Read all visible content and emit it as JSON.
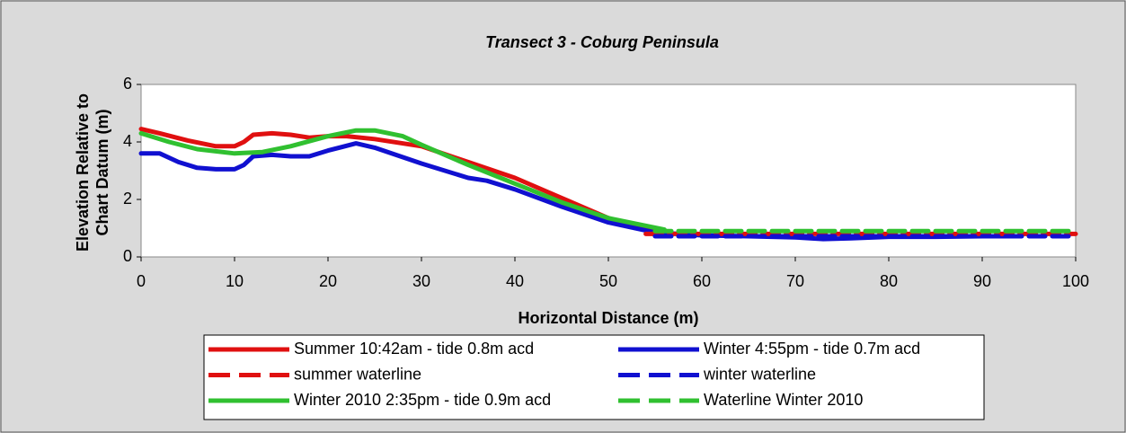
{
  "chart_data": {
    "type": "line",
    "title": "Transect 3 - Coburg Peninsula",
    "xlabel": "Horizontal Distance (m)",
    "ylabel": "Elevation Relative to Chart Datum (m)",
    "xlim": [
      0,
      100
    ],
    "xticks": [
      0,
      10,
      20,
      30,
      40,
      50,
      60,
      70,
      80,
      90,
      100
    ],
    "ylim": [
      0,
      6
    ],
    "yticks": [
      0,
      2,
      4,
      6
    ],
    "legend": "bottom",
    "series": [
      {
        "name": "Summer 10:42am - tide 0.8m acd",
        "color": "#e01010",
        "dash": false,
        "x": [
          0,
          2,
          5,
          8,
          10,
          11,
          12,
          14,
          16,
          18,
          20,
          22,
          25,
          30,
          35,
          40,
          45,
          50,
          55
        ],
        "values": [
          4.45,
          4.3,
          4.05,
          3.85,
          3.85,
          4.0,
          4.25,
          4.3,
          4.25,
          4.15,
          4.2,
          4.2,
          4.1,
          3.85,
          3.3,
          2.75,
          2.05,
          1.35,
          0.85
        ]
      },
      {
        "name": "Winter 4:55pm - tide 0.7m acd",
        "color": "#1010d0",
        "dash": false,
        "x": [
          0,
          2,
          4,
          6,
          8,
          10,
          11,
          12,
          14,
          16,
          18,
          20,
          23,
          25,
          30,
          35,
          37,
          40,
          45,
          50,
          55,
          60,
          65,
          70,
          73,
          76,
          80,
          85,
          90,
          94
        ],
        "values": [
          3.6,
          3.6,
          3.3,
          3.1,
          3.05,
          3.05,
          3.2,
          3.5,
          3.55,
          3.5,
          3.5,
          3.7,
          3.95,
          3.8,
          3.25,
          2.75,
          2.65,
          2.35,
          1.75,
          1.2,
          0.85,
          0.75,
          0.72,
          0.68,
          0.62,
          0.65,
          0.7,
          0.7,
          0.72,
          0.72
        ]
      },
      {
        "name": "summer waterline",
        "color": "#e01010",
        "dash": true,
        "x": [
          54,
          100
        ],
        "values": [
          0.8,
          0.8
        ]
      },
      {
        "name": "winter waterline",
        "color": "#1010d0",
        "dash": true,
        "x": [
          55,
          100
        ],
        "values": [
          0.72,
          0.72
        ]
      },
      {
        "name": "Winter 2010 2:35pm - tide 0.9m acd",
        "color": "#30c030",
        "dash": false,
        "x": [
          0,
          3,
          6,
          10,
          13,
          16,
          20,
          23,
          25,
          28,
          30,
          35,
          40,
          45,
          50,
          56
        ],
        "values": [
          4.3,
          4.0,
          3.75,
          3.6,
          3.65,
          3.85,
          4.2,
          4.4,
          4.4,
          4.2,
          3.9,
          3.2,
          2.55,
          1.9,
          1.35,
          0.95
        ]
      },
      {
        "name": "Waterline Winter 2010",
        "color": "#30c030",
        "dash": true,
        "x": [
          55,
          100
        ],
        "values": [
          0.9,
          0.9
        ]
      }
    ]
  }
}
